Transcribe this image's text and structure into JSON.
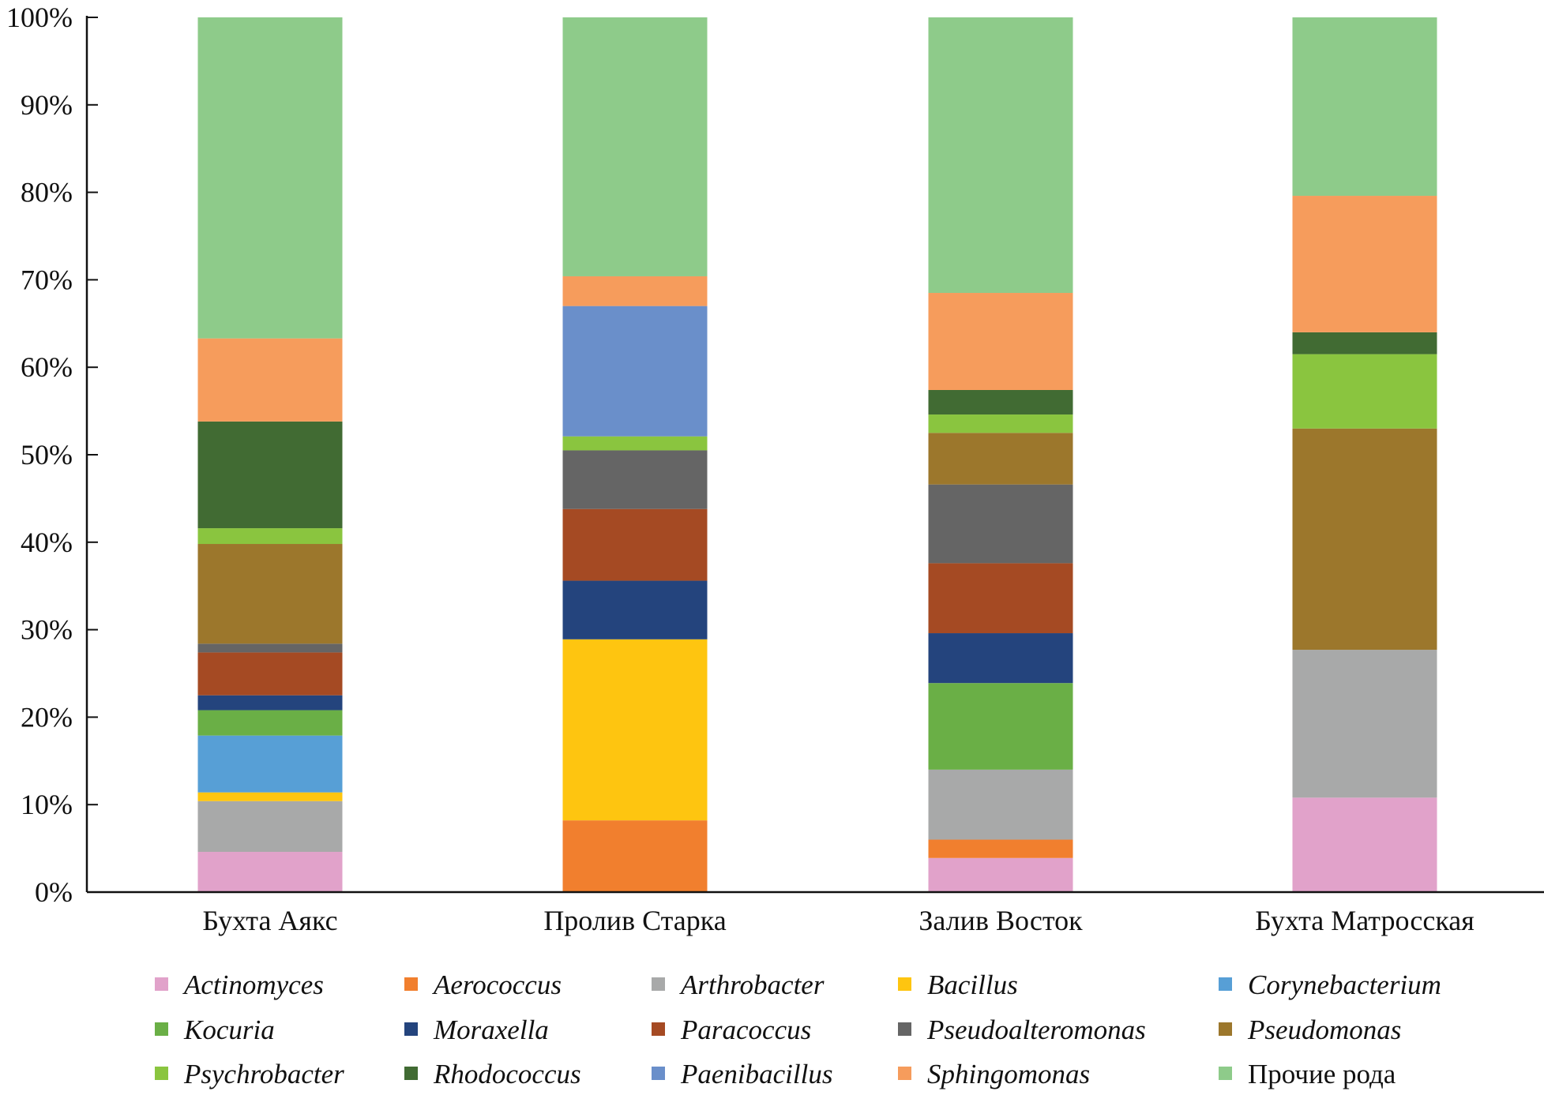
{
  "chart_data": {
    "type": "bar",
    "stacked": true,
    "percent": true,
    "ylim": [
      0,
      100
    ],
    "yticks": [
      "0%",
      "10%",
      "20%",
      "30%",
      "40%",
      "50%",
      "60%",
      "70%",
      "80%",
      "90%",
      "100%"
    ],
    "grid": false,
    "legend_placement": "bottom",
    "categories": [
      "Бухта Аякс",
      "Пролив Старка",
      "Залив Восток",
      "Бухта Матросская"
    ],
    "series": [
      {
        "name": "Actinomyces",
        "italic": true,
        "color": "#e1a2ca",
        "values": [
          4.6,
          0,
          3.9,
          10.8
        ]
      },
      {
        "name": "Aerococcus",
        "italic": true,
        "color": "#f17f2e",
        "values": [
          0,
          8.2,
          2.1,
          0
        ]
      },
      {
        "name": "Arthrobacter",
        "italic": true,
        "color": "#a8a9a9",
        "values": [
          5.8,
          0,
          8.0,
          16.9
        ]
      },
      {
        "name": "Bacillus",
        "italic": true,
        "color": "#fec510",
        "values": [
          1.0,
          20.7,
          0,
          0
        ]
      },
      {
        "name": "Corynebacterium",
        "italic": true,
        "color": "#579fd6",
        "values": [
          6.5,
          0,
          0,
          0
        ]
      },
      {
        "name": "Kocuria",
        "italic": true,
        "color": "#6aaf46",
        "values": [
          2.9,
          0,
          9.9,
          0
        ]
      },
      {
        "name": "Moraxella",
        "italic": true,
        "color": "#24447d",
        "values": [
          1.7,
          6.7,
          5.7,
          0
        ]
      },
      {
        "name": "Paracoccus",
        "italic": true,
        "color": "#a54a23",
        "values": [
          4.9,
          8.2,
          8.0,
          0
        ]
      },
      {
        "name": "Pseudoalteromonas",
        "italic": true,
        "color": "#656565",
        "values": [
          1.0,
          6.7,
          9.0,
          0
        ]
      },
      {
        "name": "Pseudomonas",
        "italic": true,
        "color": "#9c772c",
        "values": [
          11.4,
          0,
          5.9,
          25.3
        ]
      },
      {
        "name": "Psychrobacter",
        "italic": true,
        "color": "#8ac53f",
        "values": [
          1.8,
          1.6,
          2.1,
          8.5
        ]
      },
      {
        "name": "Rhodococcus",
        "italic": true,
        "color": "#416b33",
        "values": [
          12.2,
          0,
          2.8,
          2.5
        ]
      },
      {
        "name": "Paenibacillus",
        "italic": true,
        "color": "#6a8fca",
        "values": [
          0,
          14.9,
          0,
          0
        ]
      },
      {
        "name": "Sphingomonas",
        "italic": true,
        "color": "#f69c5c",
        "values": [
          9.5,
          3.4,
          11.1,
          15.6
        ]
      },
      {
        "name": "Прочие рода",
        "italic": false,
        "color": "#8ecb8a",
        "values": [
          36.7,
          29.6,
          31.5,
          20.4
        ]
      }
    ]
  }
}
